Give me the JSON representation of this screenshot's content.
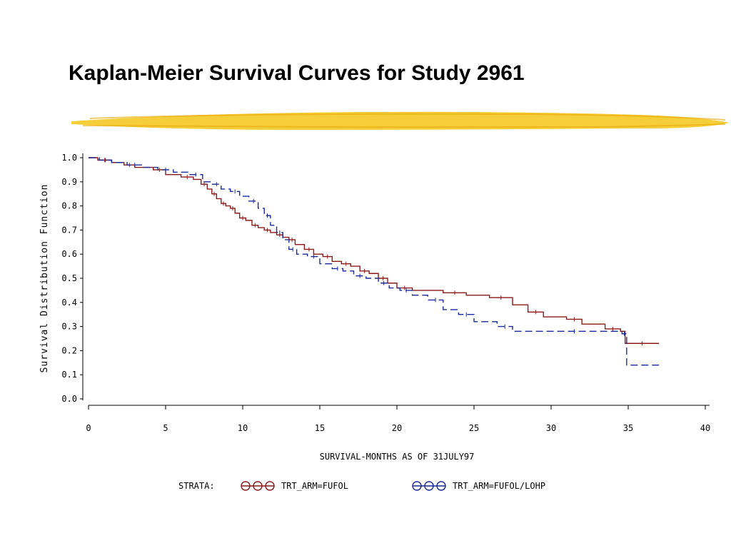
{
  "slide": {
    "title": "Kaplan-Meier Survival Curves for Study 2961"
  },
  "colors": {
    "highlighter": "#f5c518",
    "series_fufol": "#8b1a1a",
    "series_fufol_lohp": "#1a2a9c",
    "axis": "#000000"
  },
  "chart_data": {
    "type": "line",
    "subtype": "step",
    "xlabel": "SURVIVAL-MONTHS AS OF 31JULY97",
    "ylabel": "Survival Distribution Function",
    "xlim": [
      0,
      40
    ],
    "ylim": [
      0,
      1
    ],
    "xticks": [
      0,
      5,
      10,
      15,
      20,
      25,
      30,
      35,
      40
    ],
    "xtick_labels": [
      "0",
      "5",
      "10",
      "15",
      "20",
      "25",
      "30",
      "35",
      "40"
    ],
    "yticks": [
      0,
      0.1,
      0.2,
      0.3,
      0.4,
      0.5,
      0.6,
      0.7,
      0.8,
      0.9,
      1.0
    ],
    "ytick_labels": [
      "0.0",
      "0.1",
      "0.2",
      "0.3",
      "0.4",
      "0.5",
      "0.6",
      "0.7",
      "0.8",
      "0.9",
      "1.0"
    ],
    "grid": false,
    "legend": {
      "position": "bottom",
      "prefix": "STRATA:",
      "entries": [
        "TRT_ARM=FUFOL",
        "TRT_ARM=FUFOL/LOHP"
      ]
    },
    "series": [
      {
        "name": "TRT_ARM=FUFOL",
        "color": "#8b1a1a",
        "dash": "solid",
        "x": [
          0,
          0.6,
          1.5,
          2.3,
          3.0,
          4.2,
          5.0,
          6.0,
          6.8,
          7.3,
          7.7,
          8.0,
          8.3,
          8.6,
          8.9,
          9.2,
          9.5,
          9.8,
          10.2,
          10.6,
          11.0,
          11.4,
          11.8,
          12.2,
          12.6,
          13.0,
          13.4,
          14.0,
          14.6,
          15.2,
          15.8,
          16.4,
          17.0,
          17.6,
          18.2,
          18.8,
          19.4,
          20.0,
          21.0,
          23.0,
          24.5,
          26.0,
          27.5,
          28.5,
          29.5,
          31.0,
          32.0,
          33.5,
          34.5,
          34.8,
          37.0
        ],
        "y": [
          1.0,
          0.99,
          0.98,
          0.97,
          0.96,
          0.95,
          0.93,
          0.92,
          0.91,
          0.89,
          0.87,
          0.85,
          0.83,
          0.81,
          0.8,
          0.79,
          0.77,
          0.75,
          0.74,
          0.72,
          0.71,
          0.7,
          0.69,
          0.68,
          0.67,
          0.66,
          0.64,
          0.62,
          0.6,
          0.59,
          0.57,
          0.56,
          0.55,
          0.53,
          0.52,
          0.5,
          0.48,
          0.46,
          0.45,
          0.44,
          0.43,
          0.42,
          0.39,
          0.36,
          0.34,
          0.33,
          0.31,
          0.29,
          0.28,
          0.23,
          0.23
        ]
      },
      {
        "name": "TRT_ARM=FUFOL/LOHP",
        "color": "#1a2a9c",
        "dash": "dashed",
        "x": [
          0,
          0.7,
          1.5,
          2.5,
          3.5,
          4.5,
          5.5,
          6.5,
          7.4,
          8.0,
          8.6,
          9.2,
          9.8,
          10.4,
          11.0,
          11.4,
          11.8,
          12.2,
          12.6,
          13.0,
          13.5,
          14.2,
          15.0,
          15.8,
          16.5,
          17.2,
          18.0,
          18.8,
          19.5,
          20.2,
          21.0,
          22.0,
          23.0,
          24.0,
          25.0,
          26.5,
          27.5,
          30.0,
          33.0,
          34.6,
          34.9,
          37.0
        ],
        "y": [
          1.0,
          0.99,
          0.98,
          0.97,
          0.96,
          0.95,
          0.94,
          0.93,
          0.9,
          0.89,
          0.87,
          0.86,
          0.84,
          0.82,
          0.79,
          0.76,
          0.72,
          0.69,
          0.66,
          0.62,
          0.6,
          0.59,
          0.56,
          0.54,
          0.53,
          0.51,
          0.5,
          0.48,
          0.46,
          0.45,
          0.43,
          0.41,
          0.37,
          0.35,
          0.32,
          0.3,
          0.28,
          0.28,
          0.28,
          0.27,
          0.14,
          0.14
        ]
      }
    ]
  }
}
